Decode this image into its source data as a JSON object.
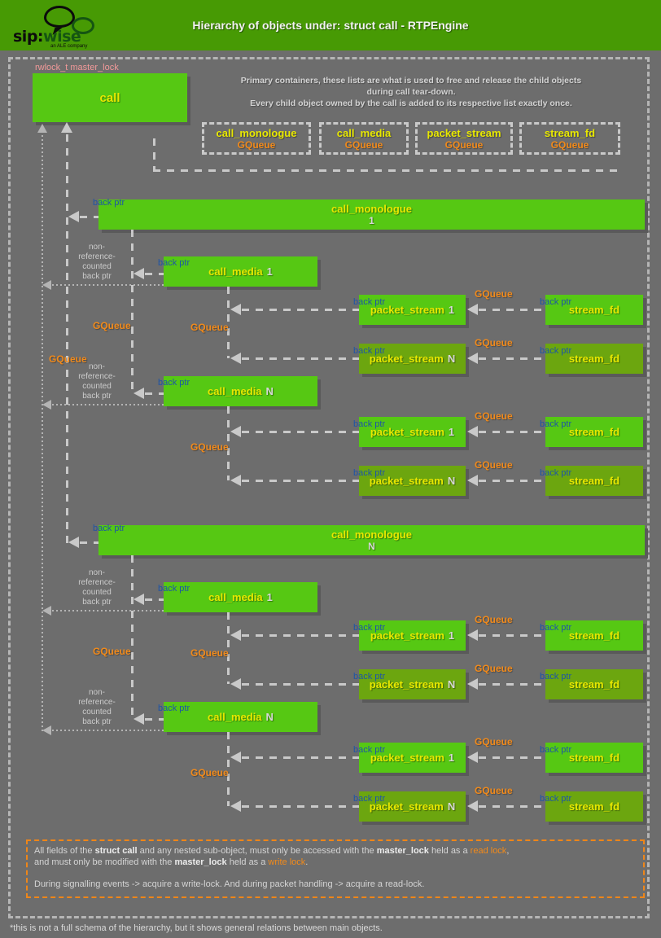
{
  "colors": {
    "background": "#6d6d6d",
    "header_green": "#479a04",
    "box_green": "#56c813",
    "box_green_dark": "#6ca60f",
    "yellow": "#e8e800",
    "orange": "#f28a1a",
    "blue": "#1e55a6",
    "pink": "#f19999",
    "dash_gray": "#c9c9c9"
  },
  "header": {
    "title": "Hierarchy of objects under: struct call - RTPEngine",
    "logo": {
      "sip": "sip:",
      "wise": "wise",
      "tagline": "an ALE company"
    }
  },
  "master_lock_label": "rwlock_t master_lock",
  "call_label": "call",
  "intro": {
    "line1": "Primary containers, these lists are what is used to free and release the child objects",
    "line2": "during call tear-down.",
    "line3": "Every child object owned by the call is added to its respective list exactly once."
  },
  "legend": [
    {
      "title": "call_monologue",
      "queue": "GQueue"
    },
    {
      "title": "call_media",
      "queue": "GQueue"
    },
    {
      "title": "packet_stream",
      "queue": "GQueue"
    },
    {
      "title": "stream_fd",
      "queue": "GQueue"
    }
  ],
  "labels": {
    "back_ptr": "back ptr",
    "gqueue": "GQueue",
    "non_ref": [
      "non-",
      "reference-",
      "counted",
      "back ptr"
    ]
  },
  "diagram": {
    "monologue_title": "call_monologue",
    "media_title": "call_media",
    "packet_title": "packet_stream",
    "fd_title": "stream_fd",
    "monologues": [
      {
        "suffix": "1",
        "medias": [
          {
            "suffix": "1",
            "streams": [
              "1",
              "N"
            ]
          },
          {
            "suffix": "N",
            "streams": [
              "1",
              "N"
            ]
          }
        ]
      },
      {
        "suffix": "N",
        "medias": [
          {
            "suffix": "1",
            "streams": [
              "1",
              "N"
            ]
          },
          {
            "suffix": "N",
            "streams": [
              "1",
              "N"
            ]
          }
        ]
      }
    ]
  },
  "footer": {
    "line1": [
      {
        "t": "All fields of the "
      },
      {
        "t": "struct call",
        "s": "b"
      },
      {
        "t": " and any nested sub-object, must only be accessed with the "
      },
      {
        "t": "master_lock",
        "s": "b"
      },
      {
        "t": " held as a "
      },
      {
        "t": "read lock",
        "s": "o"
      },
      {
        "t": ","
      }
    ],
    "line2": [
      {
        "t": "and must only be modified with the "
      },
      {
        "t": "master_lock",
        "s": "b"
      },
      {
        "t": " held as a "
      },
      {
        "t": "write lock",
        "s": "o"
      },
      {
        "t": "."
      }
    ],
    "line3": [
      {
        "t": "During signalling events -> acquire a write-lock. And during packet handling -> acquire a read-lock."
      }
    ]
  },
  "footnote": "*this is not a full schema of the hierarchy, but it shows general relations between main objects."
}
